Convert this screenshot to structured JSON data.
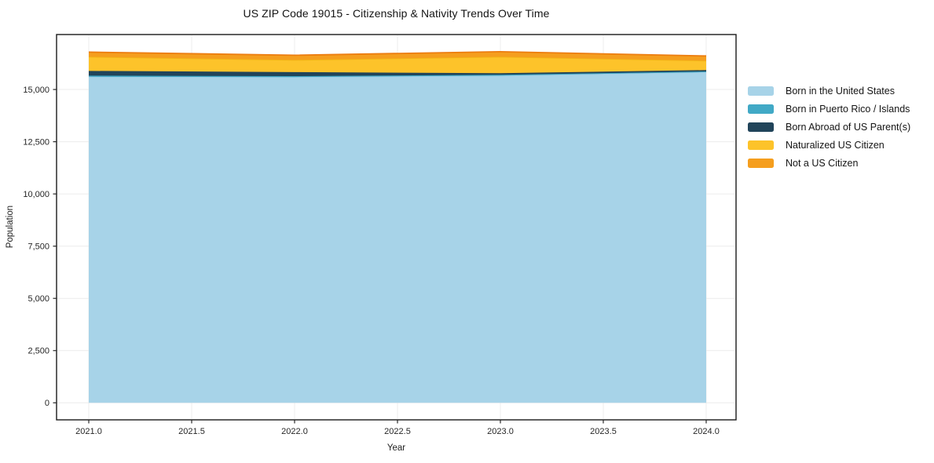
{
  "chart_data": {
    "type": "area",
    "stacked": true,
    "title": "US ZIP Code 19015 - Citizenship & Nativity Trends Over Time",
    "xlabel": "Year",
    "ylabel": "Population",
    "x": [
      2021,
      2022,
      2023,
      2024
    ],
    "x_ticks": [
      2021.0,
      2021.5,
      2022.0,
      2022.5,
      2023.0,
      2023.5,
      2024.0
    ],
    "y_ticks": [
      0,
      2500,
      5000,
      7500,
      10000,
      12500,
      15000
    ],
    "xlim": [
      2020.84,
      2024.15
    ],
    "ylim": [
      -815,
      17630
    ],
    "grid": true,
    "legend_position": "right",
    "series": [
      {
        "name": "Born in the United States",
        "color": "#A7D3E8",
        "line_color": "#9CCCE4",
        "values": [
          15610,
          15595,
          15665,
          15835
        ]
      },
      {
        "name": "Born in Puerto Rico / Islands",
        "color": "#41A9C6",
        "line_color": "#3AA2C0",
        "values": [
          55,
          45,
          40,
          30
        ]
      },
      {
        "name": "Born Abroad of US Parent(s)",
        "color": "#21445A",
        "line_color": "#21445A",
        "values": [
          225,
          195,
          75,
          65
        ]
      },
      {
        "name": "Naturalized US Citizen",
        "color": "#FDC32A",
        "line_color": "#F2B515",
        "values": [
          675,
          580,
          785,
          450
        ]
      },
      {
        "name": "Not a US Citizen",
        "color": "#F59E1E",
        "line_color": "#EC7D10",
        "values": [
          225,
          225,
          245,
          225
        ]
      }
    ]
  }
}
